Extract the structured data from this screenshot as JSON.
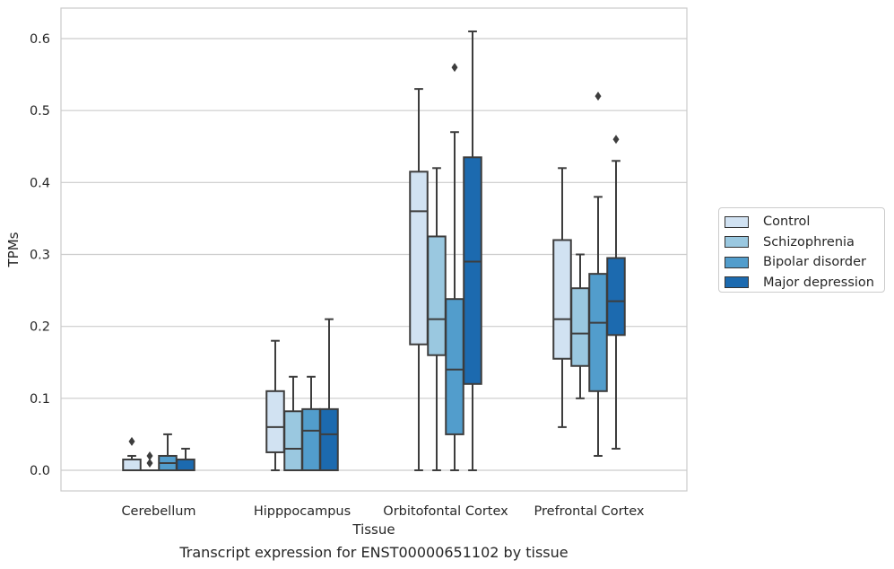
{
  "caption": "Transcript expression for ENST00000651102 by tissue",
  "chart_data": {
    "type": "boxplot",
    "title": "",
    "xlabel": "Tissue",
    "ylabel": "TPMs",
    "ylim": [
      -0.03,
      0.64
    ],
    "yticks": [
      "0.0",
      "0.1",
      "0.2",
      "0.3",
      "0.4",
      "0.5",
      "0.6"
    ],
    "grid": true,
    "legend_position": "right",
    "categories": [
      "Cerebellum",
      "Hipppocampus",
      "Orbitofontal Cortex",
      "Prefrontal Cortex"
    ],
    "series": [
      {
        "name": "Control",
        "color": "#d1e2f2",
        "boxes": [
          {
            "whislo": 0.0,
            "q1": 0.0,
            "med": 0.0,
            "q3": 0.015,
            "whishi": 0.02,
            "fliers": [
              0.04
            ]
          },
          {
            "whislo": 0.0,
            "q1": 0.025,
            "med": 0.06,
            "q3": 0.11,
            "whishi": 0.18,
            "fliers": []
          },
          {
            "whislo": 0.0,
            "q1": 0.175,
            "med": 0.36,
            "q3": 0.415,
            "whishi": 0.53,
            "fliers": []
          },
          {
            "whislo": 0.06,
            "q1": 0.155,
            "med": 0.21,
            "q3": 0.32,
            "whishi": 0.42,
            "fliers": []
          }
        ]
      },
      {
        "name": "Schizophrenia",
        "color": "#9ac8e0",
        "boxes": [
          {
            "whislo": 0.0,
            "q1": 0.0,
            "med": 0.0,
            "q3": 0.0,
            "whishi": 0.0,
            "fliers": [
              0.01,
              0.02
            ]
          },
          {
            "whislo": 0.0,
            "q1": 0.0,
            "med": 0.03,
            "q3": 0.082,
            "whishi": 0.13,
            "fliers": []
          },
          {
            "whislo": 0.0,
            "q1": 0.16,
            "med": 0.21,
            "q3": 0.325,
            "whishi": 0.42,
            "fliers": []
          },
          {
            "whislo": 0.1,
            "q1": 0.145,
            "med": 0.19,
            "q3": 0.253,
            "whishi": 0.3,
            "fliers": []
          }
        ]
      },
      {
        "name": "Bipolar disorder",
        "color": "#529dcc",
        "boxes": [
          {
            "whislo": 0.0,
            "q1": 0.0,
            "med": 0.01,
            "q3": 0.02,
            "whishi": 0.05,
            "fliers": []
          },
          {
            "whislo": 0.0,
            "q1": 0.0,
            "med": 0.055,
            "q3": 0.085,
            "whishi": 0.13,
            "fliers": []
          },
          {
            "whislo": 0.0,
            "q1": 0.05,
            "med": 0.14,
            "q3": 0.238,
            "whishi": 0.47,
            "fliers": [
              0.56
            ]
          },
          {
            "whislo": 0.02,
            "q1": 0.11,
            "med": 0.205,
            "q3": 0.273,
            "whishi": 0.38,
            "fliers": [
              0.52
            ]
          }
        ]
      },
      {
        "name": "Major depression",
        "color": "#1c6aaf",
        "boxes": [
          {
            "whislo": 0.0,
            "q1": 0.0,
            "med": 0.0,
            "q3": 0.015,
            "whishi": 0.03,
            "fliers": []
          },
          {
            "whislo": 0.0,
            "q1": 0.0,
            "med": 0.05,
            "q3": 0.085,
            "whishi": 0.21,
            "fliers": []
          },
          {
            "whislo": 0.0,
            "q1": 0.12,
            "med": 0.29,
            "q3": 0.435,
            "whishi": 0.61,
            "fliers": []
          },
          {
            "whislo": 0.03,
            "q1": 0.188,
            "med": 0.235,
            "q3": 0.295,
            "whishi": 0.43,
            "fliers": [
              0.46
            ]
          }
        ]
      }
    ]
  }
}
